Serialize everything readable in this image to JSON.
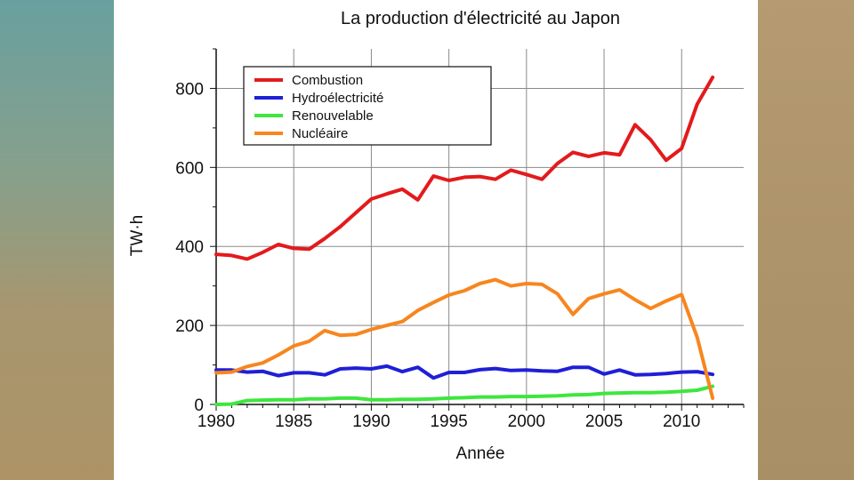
{
  "chart_data": {
    "type": "line",
    "title": "La production d'électricité au Japon",
    "xlabel": "Année",
    "ylabel": "TW·h",
    "xlim": [
      1980,
      2014
    ],
    "ylim": [
      0,
      900
    ],
    "x_ticks": [
      1980,
      1985,
      1990,
      1995,
      2000,
      2005,
      2010
    ],
    "y_ticks": [
      0,
      200,
      400,
      600,
      800
    ],
    "grid": true,
    "legend_position": "top-left",
    "x": [
      1980,
      1981,
      1982,
      1983,
      1984,
      1985,
      1986,
      1987,
      1988,
      1989,
      1990,
      1991,
      1992,
      1993,
      1994,
      1995,
      1996,
      1997,
      1998,
      1999,
      2000,
      2001,
      2002,
      2003,
      2004,
      2005,
      2006,
      2007,
      2008,
      2009,
      2010,
      2011,
      2012
    ],
    "series": [
      {
        "name": "Combustion",
        "color": "#e31a1c",
        "values": [
          380,
          377,
          368,
          385,
          405,
          395,
          393,
          420,
          450,
          485,
          520,
          533,
          545,
          518,
          578,
          567,
          575,
          577,
          570,
          593,
          582,
          570,
          610,
          638,
          628,
          637,
          632,
          708,
          670,
          618,
          648,
          760,
          828
        ]
      },
      {
        "name": "Hydroélectricité",
        "color": "#1f1fd6",
        "values": [
          87,
          87,
          82,
          84,
          73,
          80,
          80,
          75,
          90,
          92,
          90,
          97,
          83,
          94,
          67,
          81,
          81,
          88,
          91,
          86,
          87,
          85,
          84,
          94,
          94,
          77,
          87,
          75,
          76,
          78,
          82,
          83,
          76
        ]
      },
      {
        "name": "Renouvelable",
        "color": "#3ee63e",
        "values": [
          0,
          1,
          10,
          11,
          12,
          12,
          14,
          14,
          16,
          16,
          12,
          12,
          13,
          13,
          14,
          16,
          17,
          19,
          19,
          20,
          20,
          21,
          22,
          24,
          25,
          28,
          29,
          30,
          30,
          31,
          33,
          36,
          46
        ]
      },
      {
        "name": "Nucléaire",
        "color": "#f7861f",
        "values": [
          80,
          82,
          96,
          105,
          125,
          148,
          160,
          187,
          175,
          177,
          190,
          200,
          210,
          238,
          258,
          277,
          288,
          306,
          316,
          300,
          306,
          304,
          280,
          228,
          268,
          280,
          290,
          265,
          243,
          262,
          278,
          170,
          16
        ]
      }
    ]
  }
}
